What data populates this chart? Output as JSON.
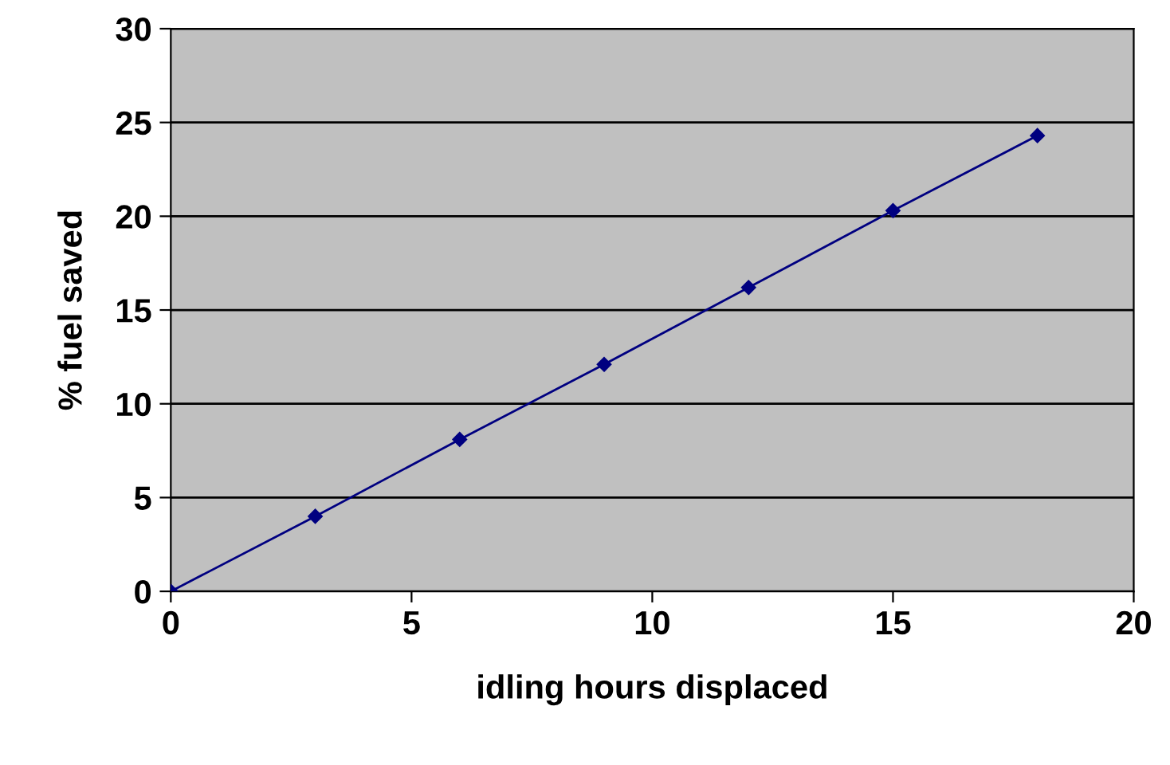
{
  "chart_data": {
    "type": "line",
    "xlabel": "idling hours displaced",
    "ylabel": "% fuel saved",
    "x": [
      0,
      3,
      6,
      9,
      12,
      15,
      18
    ],
    "series": [
      {
        "color": "#000080",
        "values": [
          0,
          4.0,
          8.1,
          12.1,
          16.2,
          20.3,
          24.3
        ]
      }
    ],
    "xlim": [
      0,
      20
    ],
    "xticks": [
      0,
      5,
      10,
      15,
      20
    ],
    "ylim": [
      0,
      30
    ],
    "yticks": [
      0,
      5,
      10,
      15,
      20,
      25,
      30
    ],
    "grid": "y",
    "marker": "diamond",
    "line_style": "solid"
  }
}
